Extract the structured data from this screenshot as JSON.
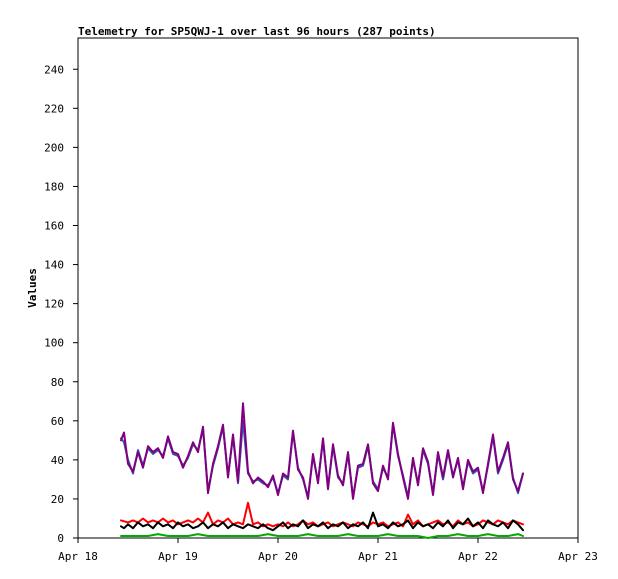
{
  "chart_data": {
    "type": "line",
    "title": "Telemetry for SP5QWJ-1 over last 96 hours (287 points)",
    "xlabel": "",
    "ylabel": "Values",
    "xlim": [
      "Apr 18",
      "Apr 23"
    ],
    "ylim": [
      0,
      256
    ],
    "grid": false,
    "legend": "none",
    "x_ticks": [
      "Apr 18",
      "Apr 19",
      "Apr 20",
      "Apr 21",
      "Apr 22",
      "Apr 23"
    ],
    "y_ticks": [
      0,
      20,
      40,
      60,
      80,
      100,
      120,
      140,
      160,
      180,
      200,
      220,
      240
    ],
    "series": [
      {
        "color": "#3355aa",
        "x": [
          18.43,
          18.46,
          18.5,
          18.55,
          18.6,
          18.65,
          18.7,
          18.75,
          18.8,
          18.85,
          18.9,
          18.95,
          19.0,
          19.05,
          19.1,
          19.15,
          19.2,
          19.25,
          19.3,
          19.35,
          19.4,
          19.45,
          19.5,
          19.55,
          19.6,
          19.65,
          19.7,
          19.75,
          19.8,
          19.85,
          19.9,
          19.95,
          20.0,
          20.05,
          20.1,
          20.15,
          20.2,
          20.25,
          20.3,
          20.35,
          20.4,
          20.45,
          20.5,
          20.55,
          20.6,
          20.65,
          20.7,
          20.75,
          20.8,
          20.85,
          20.9,
          20.95,
          21.0,
          21.05,
          21.1,
          21.15,
          21.2,
          21.25,
          21.3,
          21.35,
          21.4,
          21.45,
          21.5,
          21.55,
          21.6,
          21.65,
          21.7,
          21.75,
          21.8,
          21.85,
          21.9,
          21.95,
          22.0,
          22.05,
          22.1,
          22.15,
          22.2,
          22.25,
          22.3,
          22.35,
          22.4,
          22.45
        ],
        "values": [
          51,
          49,
          40,
          33,
          45,
          37,
          46,
          43,
          45,
          42,
          51,
          43,
          42,
          37,
          41,
          48,
          45,
          56,
          24,
          37,
          46,
          57,
          32,
          52,
          28,
          60,
          33,
          29,
          30,
          28,
          27,
          31,
          23,
          32,
          30,
          54,
          36,
          30,
          21,
          42,
          29,
          50,
          26,
          47,
          31,
          28,
          43,
          21,
          36,
          37,
          47,
          29,
          25,
          36,
          31,
          58,
          42,
          32,
          21,
          40,
          28,
          45,
          38,
          23,
          43,
          30,
          44,
          32,
          40,
          26,
          39,
          33,
          35,
          24,
          37,
          52,
          33,
          40,
          48,
          31,
          23,
          33
        ]
      },
      {
        "color": "#800080",
        "x": [
          18.43,
          18.46,
          18.5,
          18.55,
          18.6,
          18.65,
          18.7,
          18.75,
          18.8,
          18.85,
          18.9,
          18.95,
          19.0,
          19.05,
          19.1,
          19.15,
          19.2,
          19.25,
          19.3,
          19.35,
          19.4,
          19.45,
          19.5,
          19.55,
          19.6,
          19.65,
          19.7,
          19.75,
          19.8,
          19.85,
          19.9,
          19.95,
          20.0,
          20.05,
          20.1,
          20.15,
          20.2,
          20.25,
          20.3,
          20.35,
          20.4,
          20.45,
          20.5,
          20.55,
          20.6,
          20.65,
          20.7,
          20.75,
          20.8,
          20.85,
          20.9,
          20.95,
          21.0,
          21.05,
          21.1,
          21.15,
          21.2,
          21.25,
          21.3,
          21.35,
          21.4,
          21.45,
          21.5,
          21.55,
          21.6,
          21.65,
          21.7,
          21.75,
          21.8,
          21.85,
          21.9,
          21.95,
          22.0,
          22.05,
          22.1,
          22.15,
          22.2,
          22.25,
          22.3,
          22.35,
          22.4,
          22.45
        ],
        "values": [
          50,
          54,
          38,
          34,
          44,
          36,
          47,
          44,
          46,
          41,
          52,
          44,
          43,
          36,
          42,
          49,
          44,
          57,
          23,
          38,
          47,
          58,
          31,
          53,
          29,
          69,
          34,
          28,
          31,
          29,
          26,
          32,
          22,
          33,
          31,
          55,
          35,
          31,
          20,
          43,
          28,
          51,
          25,
          48,
          32,
          27,
          44,
          20,
          37,
          38,
          48,
          28,
          24,
          37,
          30,
          59,
          43,
          31,
          20,
          41,
          27,
          46,
          39,
          22,
          44,
          31,
          45,
          31,
          41,
          25,
          40,
          34,
          36,
          23,
          38,
          53,
          34,
          41,
          49,
          30,
          24,
          33
        ]
      },
      {
        "color": "#ff0000",
        "x": [
          18.43,
          18.5,
          18.55,
          18.6,
          18.65,
          18.7,
          18.75,
          18.8,
          18.85,
          18.9,
          18.95,
          19.0,
          19.05,
          19.1,
          19.15,
          19.2,
          19.25,
          19.3,
          19.35,
          19.4,
          19.45,
          19.5,
          19.55,
          19.6,
          19.65,
          19.7,
          19.75,
          19.8,
          19.85,
          19.9,
          19.95,
          20.0,
          20.05,
          20.1,
          20.15,
          20.2,
          20.25,
          20.3,
          20.35,
          20.4,
          20.45,
          20.5,
          20.55,
          20.6,
          20.65,
          20.7,
          20.75,
          20.8,
          20.85,
          20.9,
          20.95,
          21.0,
          21.05,
          21.1,
          21.15,
          21.2,
          21.25,
          21.3,
          21.35,
          21.4,
          21.45,
          21.5,
          21.55,
          21.6,
          21.65,
          21.7,
          21.75,
          21.8,
          21.85,
          21.9,
          21.95,
          22.0,
          22.05,
          22.1,
          22.15,
          22.2,
          22.25,
          22.3,
          22.35,
          22.4,
          22.45
        ],
        "values": [
          9,
          8,
          9,
          8,
          10,
          8,
          9,
          8,
          10,
          8,
          9,
          7,
          8,
          9,
          8,
          10,
          8,
          13,
          7,
          9,
          8,
          10,
          7,
          8,
          7,
          18,
          7,
          8,
          6,
          7,
          6,
          7,
          6,
          8,
          6,
          7,
          9,
          7,
          8,
          6,
          7,
          8,
          6,
          7,
          8,
          7,
          6,
          8,
          7,
          6,
          8,
          7,
          8,
          6,
          7,
          8,
          6,
          12,
          7,
          9,
          6,
          7,
          8,
          9,
          7,
          8,
          6,
          9,
          7,
          8,
          6,
          7,
          9,
          8,
          7,
          9,
          8,
          7,
          9,
          8,
          7
        ]
      },
      {
        "color": "#000000",
        "x": [
          18.43,
          18.46,
          18.5,
          18.55,
          18.6,
          18.65,
          18.7,
          18.75,
          18.8,
          18.85,
          18.9,
          18.95,
          19.0,
          19.05,
          19.1,
          19.15,
          19.2,
          19.25,
          19.3,
          19.35,
          19.4,
          19.45,
          19.5,
          19.55,
          19.6,
          19.65,
          19.7,
          19.75,
          19.8,
          19.85,
          19.9,
          19.95,
          20.0,
          20.05,
          20.1,
          20.15,
          20.2,
          20.25,
          20.3,
          20.35,
          20.4,
          20.45,
          20.5,
          20.55,
          20.6,
          20.65,
          20.7,
          20.75,
          20.8,
          20.85,
          20.9,
          20.95,
          21.0,
          21.05,
          21.1,
          21.15,
          21.2,
          21.25,
          21.3,
          21.35,
          21.4,
          21.45,
          21.5,
          21.55,
          21.6,
          21.65,
          21.7,
          21.75,
          21.8,
          21.85,
          21.9,
          21.95,
          22.0,
          22.05,
          22.1,
          22.15,
          22.2,
          22.25,
          22.3,
          22.35,
          22.4,
          22.45
        ],
        "values": [
          6,
          5,
          7,
          5,
          8,
          6,
          7,
          5,
          8,
          6,
          7,
          5,
          8,
          6,
          7,
          5,
          6,
          8,
          5,
          7,
          6,
          8,
          5,
          7,
          6,
          5,
          7,
          6,
          5,
          7,
          5,
          4,
          6,
          8,
          5,
          7,
          6,
          9,
          5,
          7,
          6,
          8,
          5,
          7,
          6,
          8,
          5,
          7,
          6,
          8,
          5,
          13,
          6,
          7,
          5,
          8,
          6,
          7,
          9,
          5,
          8,
          6,
          7,
          5,
          8,
          6,
          9,
          5,
          8,
          7,
          10,
          6,
          8,
          5,
          9,
          7,
          6,
          8,
          5,
          9,
          7,
          4
        ]
      },
      {
        "color": "#00aa00",
        "x": [
          18.43,
          18.5,
          18.6,
          18.7,
          18.8,
          18.9,
          19.0,
          19.1,
          19.2,
          19.3,
          19.4,
          19.5,
          19.6,
          19.7,
          19.8,
          19.9,
          20.0,
          20.1,
          20.2,
          20.3,
          20.4,
          20.5,
          20.6,
          20.7,
          20.8,
          20.9,
          21.0,
          21.1,
          21.2,
          21.3,
          21.4,
          21.5,
          21.6,
          21.7,
          21.8,
          21.9,
          22.0,
          22.1,
          22.2,
          22.3,
          22.4,
          22.45
        ],
        "values": [
          1,
          1,
          1,
          1,
          2,
          1,
          1,
          1,
          2,
          1,
          1,
          1,
          1,
          1,
          1,
          2,
          1,
          1,
          1,
          2,
          1,
          1,
          1,
          2,
          1,
          1,
          1,
          2,
          1,
          1,
          1,
          0,
          1,
          1,
          2,
          1,
          1,
          2,
          1,
          1,
          2,
          1
        ]
      }
    ]
  }
}
